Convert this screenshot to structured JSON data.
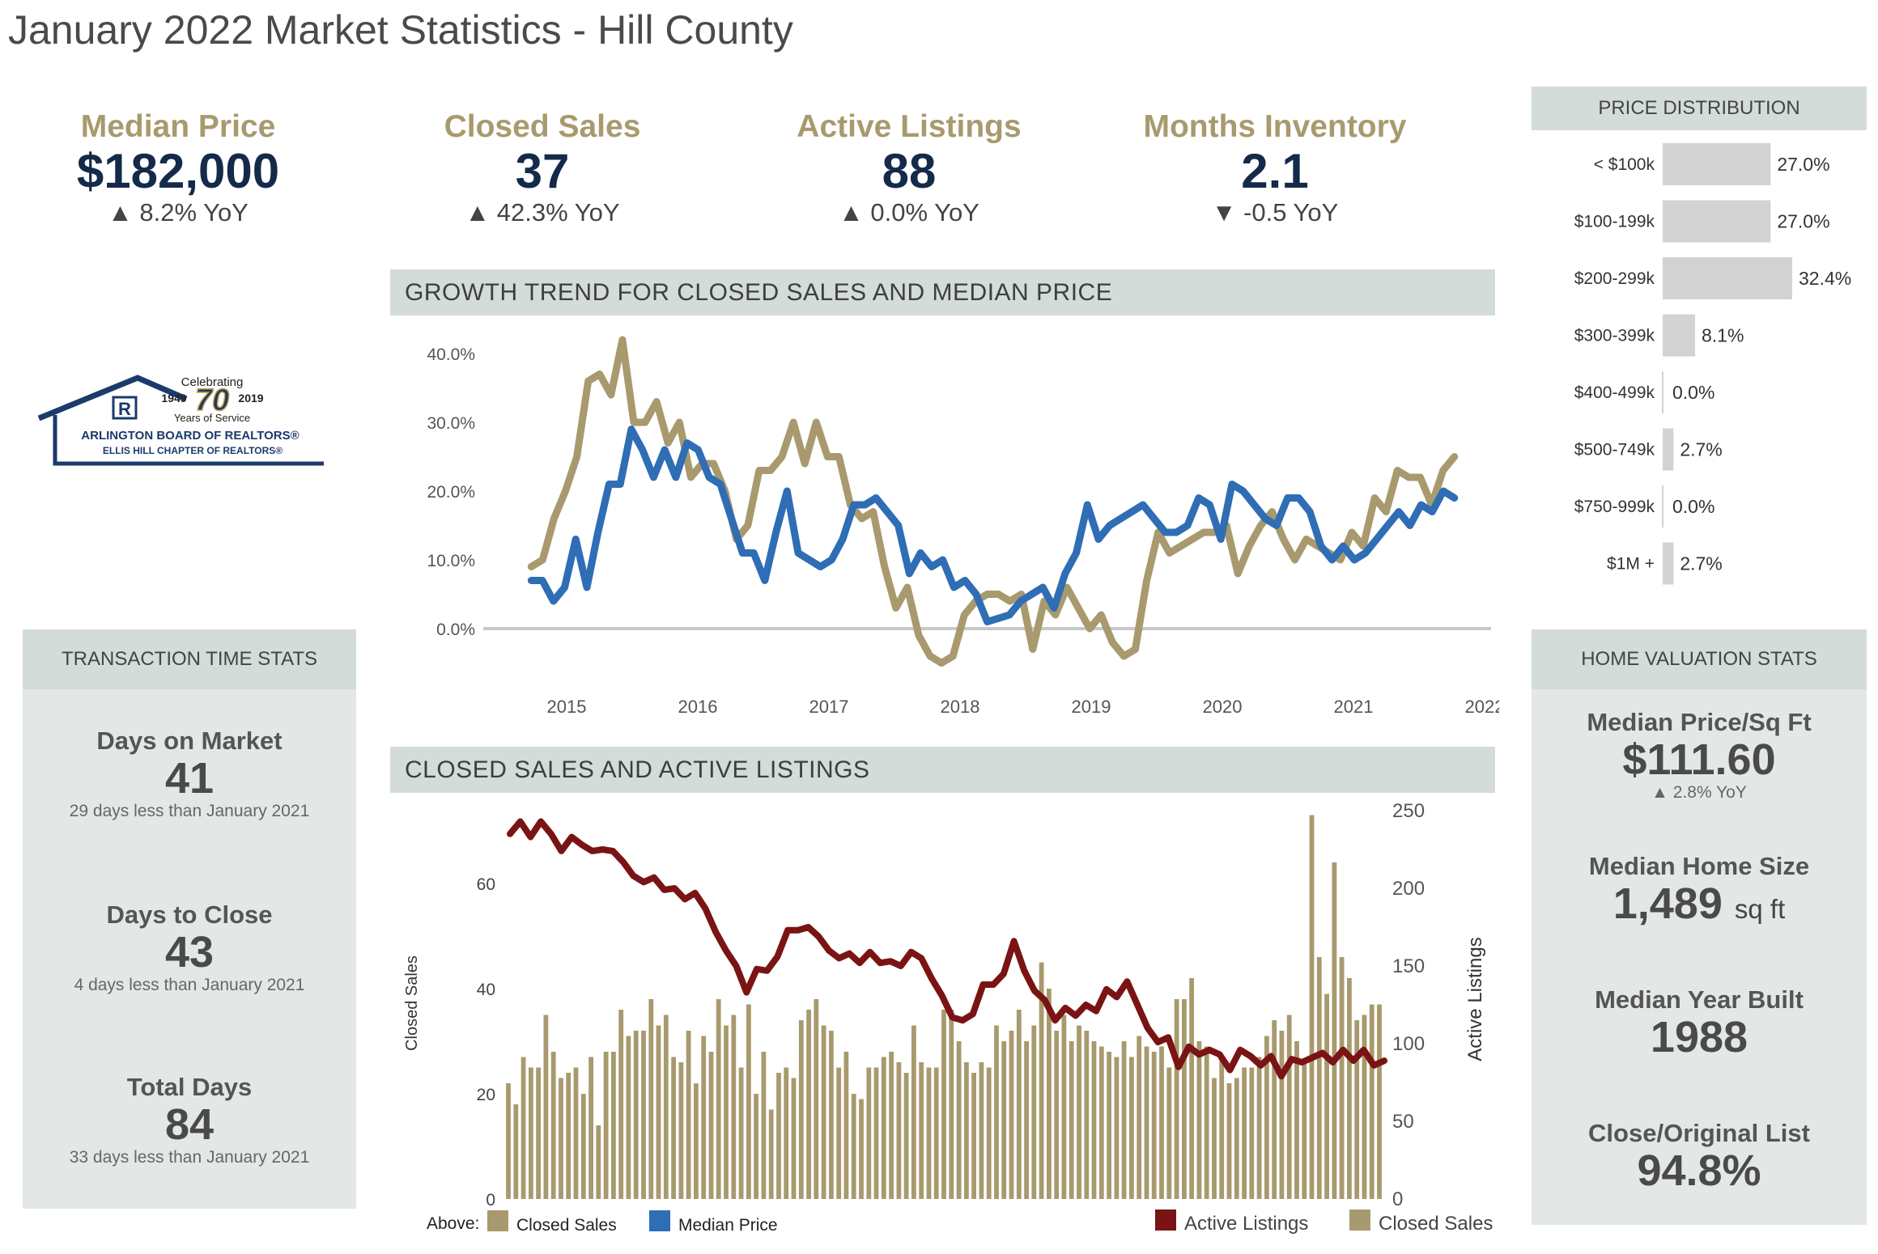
{
  "page_title": "January 2022 Market Statistics - Hill County",
  "kpis": [
    {
      "label": "Median Price",
      "value": "$182,000",
      "yoy": "▲ 8.2% YoY"
    },
    {
      "label": "Closed Sales",
      "value": "37",
      "yoy": "▲ 42.3% YoY"
    },
    {
      "label": "Active Listings",
      "value": "88",
      "yoy": "▲ 0.0% YoY"
    },
    {
      "label": "Months Inventory",
      "value": "2.1",
      "yoy": "▼ -0.5 YoY"
    }
  ],
  "logo": {
    "celebrating": "Celebrating",
    "years": "70",
    "year_start": "1949",
    "year_end": "2019",
    "service": "Years of Service",
    "line1": "ARLINGTON BOARD OF REALTORS®",
    "line2": "ELLIS HILL CHAPTER OF REALTORS®"
  },
  "transaction_stats": {
    "header": "TRANSACTION TIME STATS",
    "items": [
      {
        "label": "Days on Market",
        "value": "41",
        "sub": "29 days less than January 2021"
      },
      {
        "label": "Days to Close",
        "value": "43",
        "sub": "4 days less than January 2021"
      },
      {
        "label": "Total Days",
        "value": "84",
        "sub": "33 days less than January 2021"
      }
    ]
  },
  "home_valuation": {
    "header": "HOME VALUATION STATS",
    "items": [
      {
        "label": "Median Price/Sq Ft",
        "value": "$111.60",
        "sub": "▲ 2.8% YoY",
        "unit": ""
      },
      {
        "label": "Median Home Size",
        "value": "1,489",
        "sub": "",
        "unit": "sq ft"
      },
      {
        "label": "Median Year Built",
        "value": "1988",
        "sub": "",
        "unit": ""
      },
      {
        "label": "Close/Original List",
        "value": "94.8%",
        "sub": "",
        "unit": ""
      }
    ]
  },
  "colors": {
    "gold": "#a89a6e",
    "blue": "#2f6db5",
    "maroon": "#7a1414",
    "navy": "#142a4a",
    "banner": "#d3dcd8",
    "bar_gray": "#d2d2d2"
  },
  "chart_data": [
    {
      "type": "line",
      "title": "GROWTH TREND FOR CLOSED SALES AND MEDIAN PRICE",
      "x_ticks": [
        "2015",
        "2016",
        "2017",
        "2018",
        "2019",
        "2020",
        "2021",
        "2022"
      ],
      "y_ticks": [
        "40.0%",
        "30.0%",
        "20.0%",
        "10.0%",
        "0.0%"
      ],
      "ylim": [
        -5,
        42
      ],
      "x_start": 2014.73,
      "x_end": 2021.77,
      "series": [
        {
          "name": "Closed Sales",
          "color": "#a89a6e",
          "values": [
            9,
            10,
            16,
            20,
            25,
            36,
            37,
            34,
            42,
            30,
            30,
            33,
            27,
            30,
            22,
            24,
            24,
            20,
            13,
            15,
            23,
            23,
            25,
            30,
            24,
            30,
            25,
            25,
            18,
            16,
            17,
            9,
            3,
            6,
            -1,
            -4,
            -5,
            -4,
            2,
            4,
            5,
            5,
            4,
            5,
            -3,
            4,
            2,
            6,
            3,
            0,
            2,
            -2,
            -4,
            -3,
            7,
            14,
            11,
            12,
            13,
            14,
            14,
            15,
            8,
            12,
            15,
            17,
            13,
            10,
            13,
            12,
            11,
            10,
            14,
            12,
            19,
            17,
            23,
            22,
            22,
            18,
            23,
            25
          ]
        },
        {
          "name": "Median Price",
          "color": "#2f6db5",
          "values": [
            7,
            7,
            4,
            6,
            13,
            6,
            14,
            21,
            21,
            29,
            26,
            22,
            26,
            22,
            27,
            26,
            22,
            21,
            16,
            11,
            11,
            7,
            14,
            20,
            11,
            10,
            9,
            10,
            13,
            18,
            18,
            19,
            17,
            15,
            8,
            11,
            9,
            10,
            6,
            7,
            5,
            1,
            1.5,
            2,
            4,
            5,
            6,
            3,
            8,
            11,
            18,
            13,
            15,
            16,
            17,
            18,
            16,
            14,
            14,
            15,
            19,
            18,
            13,
            21,
            20,
            18,
            16,
            15,
            19,
            19,
            17,
            12,
            10,
            12,
            10,
            11,
            13,
            15,
            17,
            15,
            18,
            17,
            20,
            19
          ]
        }
      ]
    },
    {
      "type": "bar",
      "title": "CLOSED SALES AND ACTIVE LISTINGS",
      "ylabel_left": "Closed Sales",
      "ylabel_right": "Active Listings",
      "left_ticks": [
        "60",
        "40",
        "20",
        "0"
      ],
      "right_ticks": [
        "250",
        "200",
        "150",
        "100",
        "50",
        "0"
      ],
      "left_ylim": [
        0,
        73.5
      ],
      "right_ylim": [
        0,
        250
      ],
      "series": [
        {
          "name": "Closed Sales",
          "type": "bar",
          "color": "#a89a6e",
          "values": [
            22,
            18,
            27,
            25,
            25,
            35,
            28,
            23,
            24,
            25,
            20,
            27,
            14,
            28,
            28,
            36,
            31,
            32,
            32,
            38,
            33,
            35,
            27,
            26,
            32,
            22,
            31,
            28,
            38,
            33,
            35,
            25,
            37,
            20,
            28,
            17,
            24,
            25,
            23,
            34,
            36,
            38,
            33,
            32,
            25,
            28,
            20,
            19,
            25,
            25,
            27,
            28,
            26,
            24,
            33,
            26,
            25,
            25,
            36,
            36,
            30,
            26,
            24,
            26,
            25,
            33,
            30,
            32,
            36,
            30,
            33,
            45,
            40,
            32,
            35,
            30,
            33,
            32,
            30,
            29,
            28,
            27,
            30,
            27,
            31,
            29,
            28,
            29,
            25,
            38,
            38,
            42,
            30,
            29,
            23,
            27,
            22,
            23,
            25,
            25,
            27,
            31,
            34,
            32,
            35,
            30,
            26,
            73,
            46,
            39,
            64,
            46,
            42,
            34,
            35,
            37,
            37
          ]
        },
        {
          "name": "Active Listings",
          "type": "line",
          "color": "#7a1414",
          "values": [
            235,
            243,
            233,
            243,
            235,
            224,
            233,
            228,
            224,
            225,
            224,
            217,
            208,
            204,
            207,
            199,
            200,
            193,
            197,
            187,
            172,
            160,
            150,
            133,
            148,
            147,
            156,
            173,
            173,
            175,
            169,
            160,
            155,
            158,
            152,
            159,
            152,
            153,
            150,
            159,
            155,
            142,
            131,
            117,
            115,
            119,
            138,
            138,
            145,
            166,
            147,
            134,
            128,
            115,
            123,
            118,
            125,
            121,
            135,
            130,
            140,
            125,
            110,
            101,
            104,
            85,
            98,
            93,
            96,
            93,
            83,
            96,
            92,
            86,
            92,
            79,
            90,
            88,
            91,
            94,
            88,
            96,
            89,
            96,
            86,
            89
          ]
        }
      ]
    },
    {
      "type": "bar",
      "title": "PRICE DISTRIBUTION",
      "categories": [
        "< $100k",
        "$100-199k",
        "$200-299k",
        "$300-399k",
        "$400-499k",
        "$500-749k",
        "$750-999k",
        "$1M +"
      ],
      "values": [
        27.0,
        27.0,
        32.4,
        8.1,
        0.0,
        2.7,
        0.0,
        2.7
      ],
      "value_labels": [
        "27.0%",
        "27.0%",
        "32.4%",
        "8.1%",
        "0.0%",
        "2.7%",
        "0.0%",
        "2.7%"
      ]
    }
  ],
  "legend": {
    "above_label": "Above:",
    "above_items": [
      {
        "name": "Closed Sales",
        "color": "#a89a6e"
      },
      {
        "name": "Median Price",
        "color": "#2f6db5"
      }
    ],
    "chart_items": [
      {
        "name": "Active Listings",
        "color": "#7a1414"
      },
      {
        "name": "Closed Sales",
        "color": "#a89a6e"
      }
    ]
  }
}
